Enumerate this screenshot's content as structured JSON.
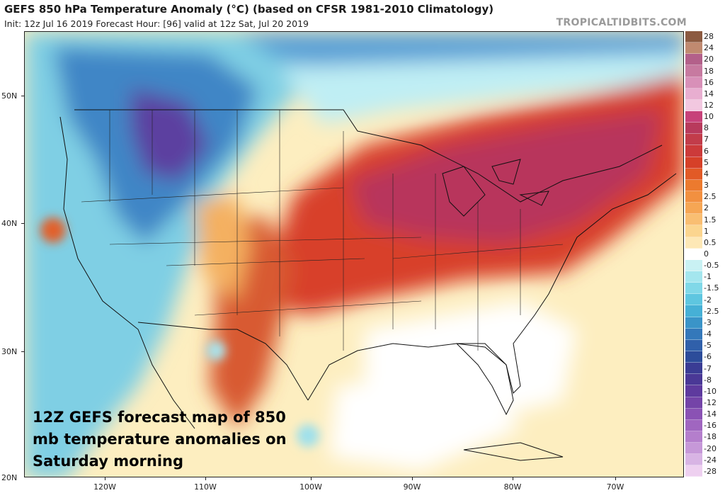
{
  "header": {
    "title": "GEFS 850 hPa Temperature Anomaly (°C) (based on CFSR 1981-2010 Climatology)",
    "subtitle": "Init: 12z Jul 16 2019   Forecast Hour: [96]   valid at 12z Sat, Jul 20 2019",
    "brand": "TROPICALTIDBITS.COM"
  },
  "axes": {
    "lat_labels": [
      "50N",
      "40N",
      "30N",
      "20N"
    ],
    "lon_labels": [
      "120W",
      "110W",
      "100W",
      "90W",
      "80W",
      "70W"
    ]
  },
  "caption": "12Z GEFS forecast map of 850 mb temperature anomalies on Saturday morning",
  "colorbar": {
    "labels": [
      "28",
      "24",
      "20",
      "18",
      "16",
      "14",
      "12",
      "10",
      "8",
      "7",
      "6",
      "5",
      "4",
      "3",
      "2.5",
      "2",
      "1.5",
      "1",
      "0.5",
      "0",
      "-0.5",
      "-1",
      "-1.5",
      "-2",
      "-2.5",
      "-3",
      "-4",
      "-5",
      "-6",
      "-7",
      "-8",
      "-10",
      "-12",
      "-14",
      "-16",
      "-18",
      "-20",
      "-24",
      "-28"
    ],
    "colors": [
      "#8c5a40",
      "#c08a70",
      "#b3608a",
      "#c77aa0",
      "#d890b8",
      "#e8aed0",
      "#f2c8e0",
      "#c7427a",
      "#b83a5c",
      "#c23c4a",
      "#cc3a3a",
      "#d64028",
      "#e25a26",
      "#ec7a2e",
      "#f29040",
      "#f6a654",
      "#f9be72",
      "#fbd58f",
      "#fde8b6",
      "#ffffff",
      "#c9f1f3",
      "#a4e6ee",
      "#80d8e8",
      "#5ec6e0",
      "#46b0d6",
      "#3a94c8",
      "#3478ba",
      "#3060aa",
      "#2c4c9a",
      "#3a3c94",
      "#4a3896",
      "#5e3a9e",
      "#7444a8",
      "#8a52b4",
      "#a066c0",
      "#b47ecc",
      "#c698d8",
      "#d8b4e4",
      "#eed0f0"
    ]
  }
}
